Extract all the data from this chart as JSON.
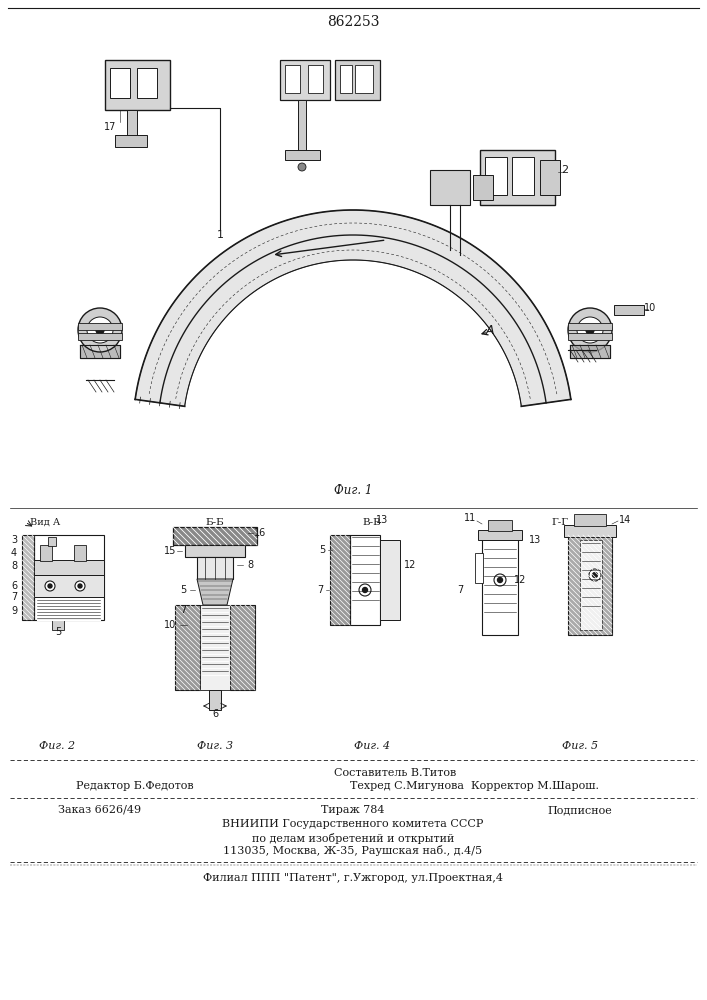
{
  "patent_number": "862253",
  "fig1_caption": "Фиг. 1",
  "fig2_caption": "Фиг. 2",
  "fig3_caption": "Фиг. 3",
  "fig4_caption": "Фиг. 4",
  "fig5_caption": "Фиг. 5",
  "sestavitel_label": "Составитель В.Титов",
  "redaktor_label": "Редактор Б.Федотов",
  "tekhred_label": "Техред С.Мигунова  Корректор М.Шарош.",
  "zakaz_label": "Заказ 6626/49",
  "tirazh_label": "Тираж 784",
  "podpisnoe_label": "Подписное",
  "vniip_line1": "ВНИИПИ Государственного комитета СССР",
  "vniip_line2": "по делам изобретений и открытий",
  "vniip_line3": "113035, Москва, Ж-35, Раушская наб., д.4/5",
  "filial_label": "Филиал ППП \"Патент\", г.Ужгород, ул.Проектная,4",
  "vid_a_label": "Вид А",
  "bb_label": "Б-Б",
  "vv_label": "В-В",
  "gg_label": "Г-Г",
  "line_color": "#1a1a1a",
  "hatch_color": "#555555"
}
